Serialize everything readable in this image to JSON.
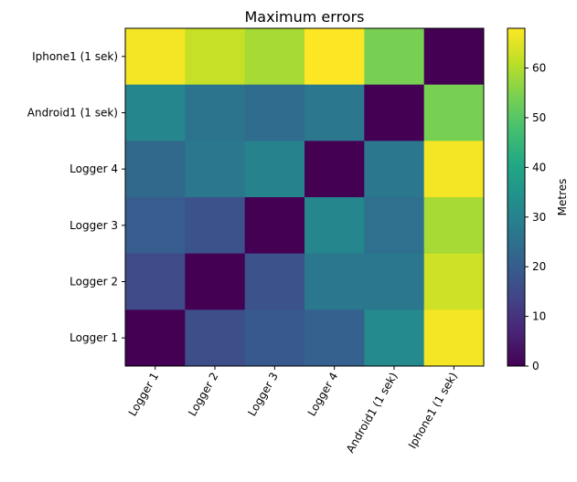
{
  "chart_data": {
    "type": "heatmap",
    "title": "Maximum errors",
    "x_categories": [
      "Logger 1",
      "Logger 2",
      "Logger 3",
      "Logger 4",
      "Android1 (1 sek)",
      "Iphone1 (1 sek)"
    ],
    "y_categories": [
      "Iphone1 (1 sek)",
      "Android1 (1 sek)",
      "Logger 4",
      "Logger 3",
      "Logger 2",
      "Logger 1"
    ],
    "values": [
      [
        67,
        62,
        59,
        68,
        54,
        0
      ],
      [
        31,
        26,
        24,
        27,
        0,
        54
      ],
      [
        23,
        27,
        30,
        0,
        27,
        67
      ],
      [
        20,
        17,
        0,
        31,
        25,
        59
      ],
      [
        15,
        0,
        17,
        27,
        27,
        63
      ],
      [
        0,
        16,
        19,
        21,
        32,
        67
      ]
    ],
    "colorbar": {
      "label": "Metres",
      "min": 0,
      "max": 68,
      "ticks": [
        0,
        10,
        20,
        30,
        40,
        50,
        60
      ],
      "colormap": "viridis"
    },
    "grid": false
  }
}
